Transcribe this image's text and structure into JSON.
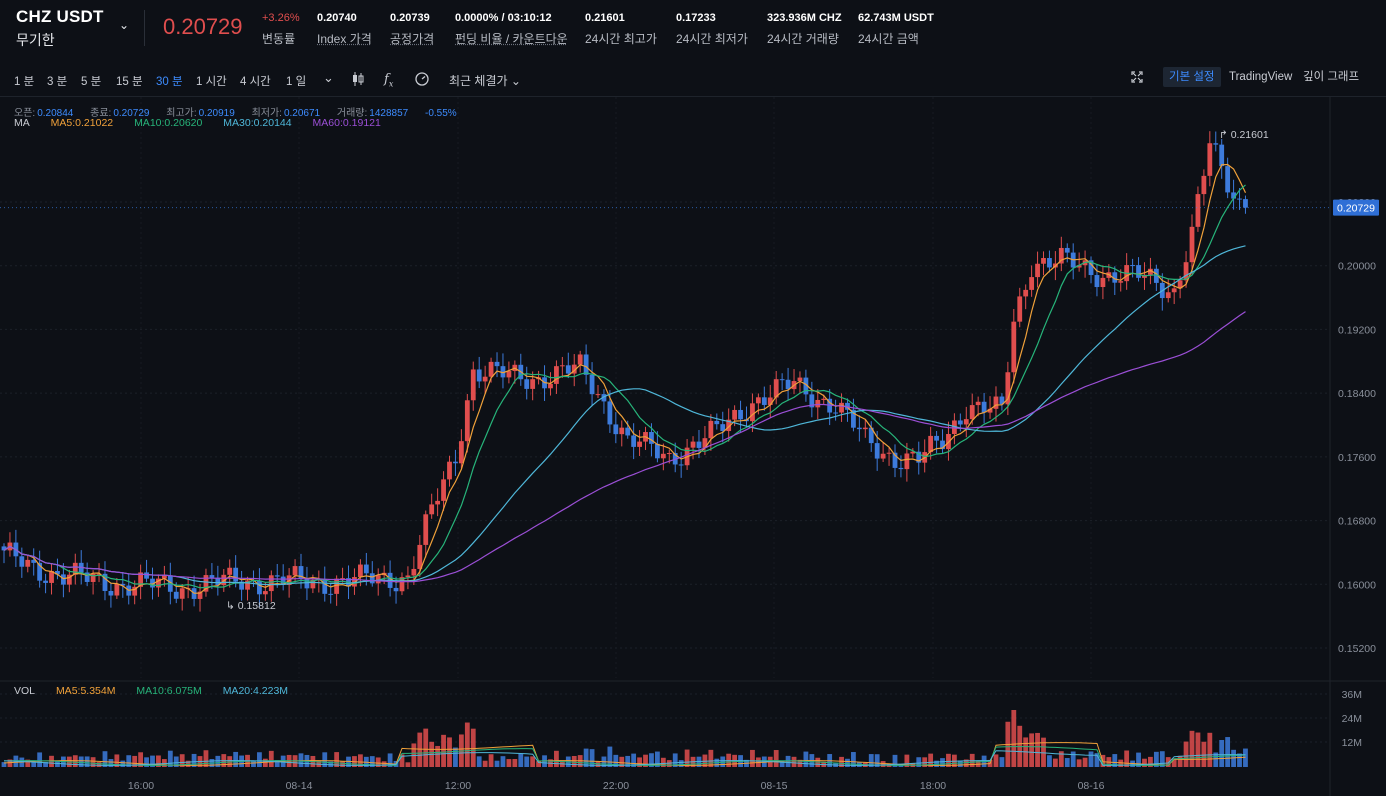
{
  "header": {
    "symbol": "CHZ USDT",
    "subtitle": "무기한",
    "last_price": "0.20729",
    "change_pct": "+3.26%",
    "change_label": "변동률",
    "index_price": "0.20740",
    "index_label": "Index 가격",
    "fair_price": "0.20739",
    "fair_label": "공정가격",
    "funding": "0.0000% / 03:10:12",
    "funding_label": "펀딩 비율 / 카운트다운",
    "high24": "0.21601",
    "high24_label": "24시간 최고가",
    "low24": "0.17233",
    "low24_label": "24시간 최저가",
    "vol24": "323.936M CHZ",
    "vol24_label": "24시간 거래량",
    "amt24": "62.743M USDT",
    "amt24_label": "24시간 금액"
  },
  "toolbar": {
    "timeframes": [
      "1 분",
      "3 분",
      "5 분",
      "15 분",
      "30 분",
      "1 시간",
      "4 시간",
      "1 일"
    ],
    "active_timeframe": "30 분",
    "recent_trades": "최근 체결가",
    "views": [
      "기본 설정",
      "TradingView",
      "깊이 그래프"
    ],
    "active_view": "기본 설정",
    "icons": [
      "chevron-down-icon",
      "candlestick-icon",
      "fx-icon",
      "gauge-icon",
      "fullscreen-icon"
    ]
  },
  "ohlc": {
    "open_label": "오픈:",
    "open": "0.20844",
    "close_label": "종료:",
    "close": "0.20729",
    "high_label": "최고가:",
    "high": "0.20919",
    "low_label": "최저가:",
    "low": "0.20671",
    "vol_label": "거래량:",
    "vol": "1428857",
    "change": "-0.55%"
  },
  "ma_legend": {
    "label": "MA",
    "ma5": "MA5:0.21022",
    "ma10": "MA10:0.20620",
    "ma30": "MA30:0.20144",
    "ma60": "MA60:0.19121"
  },
  "vol_legend": {
    "label": "VOL",
    "ma5": "MA5:5.354M",
    "ma10": "MA10:6.075M",
    "ma20": "MA20:4.223M"
  },
  "colors": {
    "up": "#e04e4e",
    "down": "#3d7bdc",
    "ma5": "#f0a13a",
    "ma10": "#27b47a",
    "ma30": "#4fb7d9",
    "ma60": "#9b4fd6",
    "accent": "#3d8bfd"
  },
  "chart_data": {
    "type": "candlestick",
    "price_axis_ticks": [
      "0.20800",
      "0.20000",
      "0.19200",
      "0.18400",
      "0.17600",
      "0.16800",
      "0.16000",
      "0.15200"
    ],
    "price_ticks_values": [
      0.208,
      0.2,
      0.192,
      0.184,
      0.176,
      0.168,
      0.16,
      0.152
    ],
    "current_price_label": "0.20729",
    "current_price": 0.20729,
    "high_marker": "0.21601",
    "low_marker": "0.15812",
    "volume_axis_ticks": [
      "36M",
      "24M",
      "12M"
    ],
    "x_ticks": [
      "16:00",
      "08-14",
      "12:00",
      "22:00",
      "08-15",
      "18:00",
      "08-16"
    ],
    "key_points": [
      {
        "i": 0,
        "price": 0.1635
      },
      {
        "i": 10,
        "price": 0.161
      },
      {
        "i": 20,
        "price": 0.16
      },
      {
        "i": 30,
        "price": 0.1596
      },
      {
        "i": 40,
        "price": 0.1605
      },
      {
        "i": 50,
        "price": 0.1603
      },
      {
        "i": 60,
        "price": 0.1605
      },
      {
        "i": 68,
        "price": 0.161
      },
      {
        "i": 72,
        "price": 0.169
      },
      {
        "i": 76,
        "price": 0.176
      },
      {
        "i": 79,
        "price": 0.187
      },
      {
        "i": 85,
        "price": 0.186
      },
      {
        "i": 90,
        "price": 0.186
      },
      {
        "i": 97,
        "price": 0.187
      },
      {
        "i": 100,
        "price": 0.184
      },
      {
        "i": 105,
        "price": 0.178
      },
      {
        "i": 112,
        "price": 0.176
      },
      {
        "i": 120,
        "price": 0.179
      },
      {
        "i": 126,
        "price": 0.183
      },
      {
        "i": 133,
        "price": 0.185
      },
      {
        "i": 140,
        "price": 0.1825
      },
      {
        "i": 145,
        "price": 0.178
      },
      {
        "i": 150,
        "price": 0.176
      },
      {
        "i": 154,
        "price": 0.1755
      },
      {
        "i": 158,
        "price": 0.178
      },
      {
        "i": 162,
        "price": 0.1825
      },
      {
        "i": 168,
        "price": 0.1815
      },
      {
        "i": 170,
        "price": 0.193
      },
      {
        "i": 173,
        "price": 0.2005
      },
      {
        "i": 178,
        "price": 0.2005
      },
      {
        "i": 185,
        "price": 0.199
      },
      {
        "i": 192,
        "price": 0.1985
      },
      {
        "i": 197,
        "price": 0.197
      },
      {
        "i": 200,
        "price": 0.204
      },
      {
        "i": 203,
        "price": 0.215
      },
      {
        "i": 207,
        "price": 0.209
      },
      {
        "i": 209,
        "price": 0.20729
      }
    ]
  }
}
